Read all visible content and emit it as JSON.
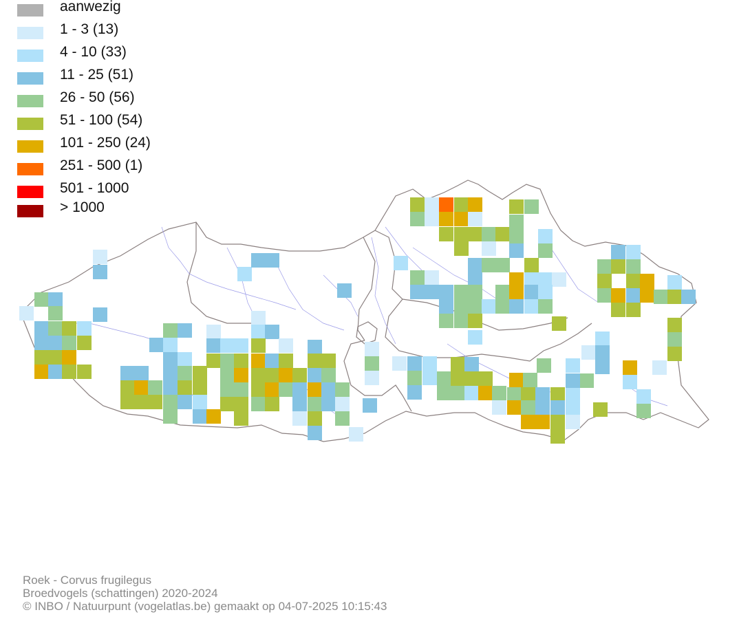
{
  "legend": [
    {
      "label": "aanwezig",
      "color": "#b1b1b1"
    },
    {
      "label": "1 - 3 (13)",
      "color": "#d3ecfb"
    },
    {
      "label": "4 - 10 (33)",
      "color": "#b0e1fa"
    },
    {
      "label": "11 - 25 (51)",
      "color": "#85c3e3"
    },
    {
      "label": "26 - 50 (56)",
      "color": "#98cd95"
    },
    {
      "label": "51 - 100 (54)",
      "color": "#aec23d"
    },
    {
      "label": "101 - 250 (24)",
      "color": "#e0ad00"
    },
    {
      "label": "251 - 500 (1)",
      "color": "#ff6a00"
    },
    {
      "label": "501 - 1000",
      "color": "#ff0000"
    },
    {
      "label": "> 1000",
      "color": "#a10000"
    }
  ],
  "footer": {
    "species": "Roek - Corvus frugilegus",
    "dataset": "Broedvogels (schattingen) 2020-2024",
    "credit": "© INBO / Natuurpunt (vogelatlas.be) gemaakt op 04-07-2025 10:15:43"
  },
  "colors": {
    "border": "#8a7f7f",
    "rivers": "#9a9ae8",
    "footer_text": "#8a8a8a"
  }
}
